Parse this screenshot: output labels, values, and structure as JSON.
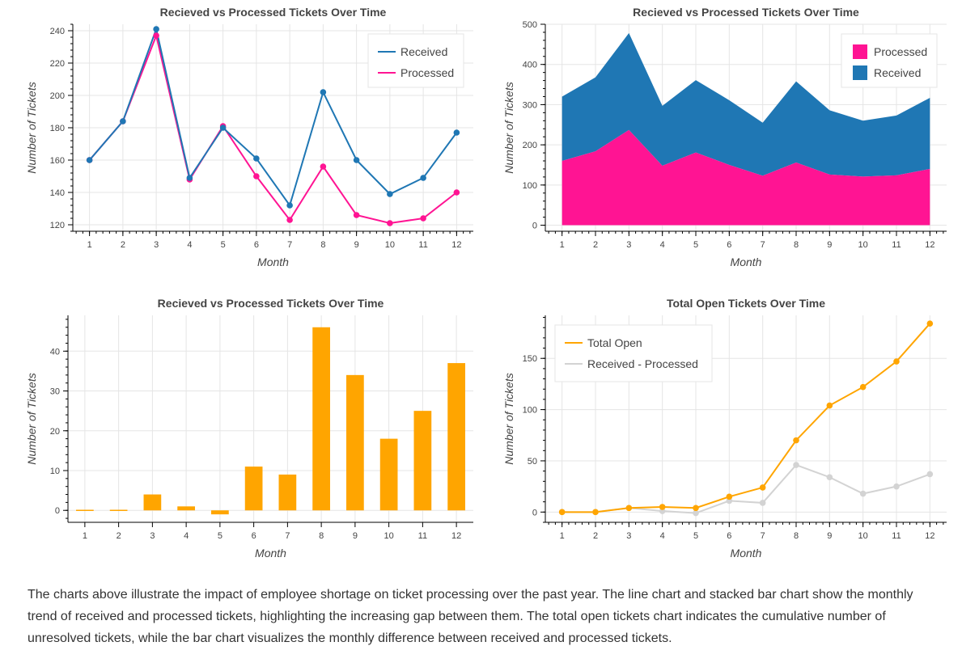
{
  "charts": [
    {
      "id": "c1",
      "type": "line",
      "title": "Recieved vs Processed Tickets Over Time",
      "xlabel": "Month",
      "ylabel": "Number of Tickets",
      "x": [
        1,
        2,
        3,
        4,
        5,
        6,
        7,
        8,
        9,
        10,
        11,
        12
      ],
      "xlim": [
        0.5,
        12.5
      ],
      "ylim": [
        116,
        244
      ],
      "yticks": [
        120,
        140,
        160,
        180,
        200,
        220,
        240
      ],
      "series": [
        {
          "name": "Received",
          "color": "#1f77b4",
          "values": [
            160,
            184,
            241,
            149,
            180,
            161,
            132,
            202,
            160,
            139,
            149,
            177
          ]
        },
        {
          "name": "Processed",
          "color": "#ff1493",
          "values": [
            160,
            184,
            237,
            148,
            181,
            150,
            123,
            156,
            126,
            121,
            124,
            140
          ]
        }
      ],
      "legend": "top-right"
    },
    {
      "id": "c2",
      "type": "area",
      "stacked": true,
      "title": "Recieved vs Processed Tickets Over Time",
      "xlabel": "Month",
      "ylabel": "Number of Tickets",
      "x": [
        1,
        2,
        3,
        4,
        5,
        6,
        7,
        8,
        9,
        10,
        11,
        12
      ],
      "xlim": [
        0.5,
        12.5
      ],
      "ylim": [
        -15,
        500
      ],
      "yticks": [
        0,
        100,
        200,
        300,
        400,
        500
      ],
      "series": [
        {
          "name": "Processed",
          "color": "#ff1493",
          "values": [
            160,
            184,
            237,
            148,
            181,
            150,
            123,
            156,
            126,
            121,
            124,
            140
          ]
        },
        {
          "name": "Received",
          "color": "#1f77b4",
          "values": [
            160,
            184,
            241,
            149,
            180,
            161,
            132,
            202,
            160,
            139,
            149,
            177
          ]
        }
      ],
      "legend": "top-right"
    },
    {
      "id": "c3",
      "type": "bar",
      "title": "Recieved vs Processed Tickets Over Time",
      "xlabel": "Month",
      "ylabel": "Number of Tickets",
      "categories": [
        "1",
        "2",
        "3",
        "4",
        "5",
        "6",
        "7",
        "8",
        "9",
        "10",
        "11",
        "12"
      ],
      "values": [
        0,
        0,
        4,
        1,
        -1,
        11,
        9,
        46,
        34,
        18,
        25,
        37
      ],
      "color": "#ffa500",
      "ylim": [
        -3,
        49
      ],
      "yticks": [
        0,
        10,
        20,
        30,
        40
      ]
    },
    {
      "id": "c4",
      "type": "line",
      "title": "Total Open Tickets Over Time",
      "xlabel": "Month",
      "ylabel": "Number of Tickets",
      "x": [
        1,
        2,
        3,
        4,
        5,
        6,
        7,
        8,
        9,
        10,
        11,
        12
      ],
      "xlim": [
        0.5,
        12.5
      ],
      "ylim": [
        -10,
        192
      ],
      "yticks": [
        0,
        50,
        100,
        150
      ],
      "series": [
        {
          "name": "Total Open",
          "color": "#ffa500",
          "values": [
            0,
            0,
            4,
            5,
            4,
            15,
            24,
            70,
            104,
            122,
            147,
            184
          ]
        },
        {
          "name": "Received - Processed",
          "color": "#d3d3d3",
          "values": [
            0,
            0,
            4,
            1,
            -1,
            11,
            9,
            46,
            34,
            18,
            25,
            37
          ]
        }
      ],
      "legend": "top-left"
    }
  ],
  "description": "The charts above illustrate the impact of employee shortage on ticket processing over the past year. The line chart and stacked bar chart show the monthly trend of received and processed tickets, highlighting the increasing gap between them. The total open tickets chart indicates the cumulative number of unresolved tickets, while the bar chart visualizes the monthly difference between received and processed tickets."
}
